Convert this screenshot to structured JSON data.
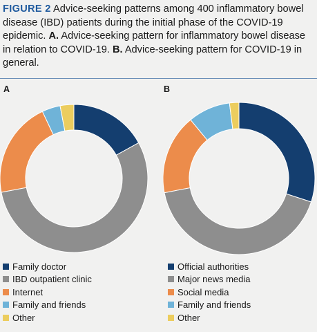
{
  "caption": {
    "figure_label": "FIGURE 2",
    "main": " Advice-seeking patterns among 400 inflammatory bowel disease (IBD) patients during the initial phase of the COVID-19 epidemic. ",
    "a_label": "A.",
    "a_text": " Advice-seeking pattern for inflammatory bowel disease in relation to COVID-19. ",
    "b_label": "B.",
    "b_text": " Advice-seeking pattern for COVID-19 in general."
  },
  "colors": {
    "navy": "#143e6f",
    "gray": "#8e8e8e",
    "orange": "#ec8c4b",
    "lightblue": "#6fb3d8",
    "yellow": "#eccd5e"
  },
  "chart_data": [
    {
      "type": "pie",
      "panel_label": "A",
      "title": "",
      "labels": [
        "Family doctor",
        "IBD outpatient clinic",
        "Internet",
        "Family and friends",
        "Other"
      ],
      "values": [
        17,
        55,
        21,
        4,
        3
      ],
      "colors": [
        "#143e6f",
        "#8e8e8e",
        "#ec8c4b",
        "#6fb3d8",
        "#eccd5e"
      ],
      "donut": true,
      "legend": "bottom"
    },
    {
      "type": "pie",
      "panel_label": "B",
      "title": "",
      "labels": [
        "Official authorities",
        "Major news media",
        "Social media",
        "Family and friends",
        "Other"
      ],
      "values": [
        30,
        42,
        17,
        9,
        2
      ],
      "colors": [
        "#143e6f",
        "#8e8e8e",
        "#ec8c4b",
        "#6fb3d8",
        "#eccd5e"
      ],
      "donut": true,
      "legend": "bottom"
    }
  ]
}
